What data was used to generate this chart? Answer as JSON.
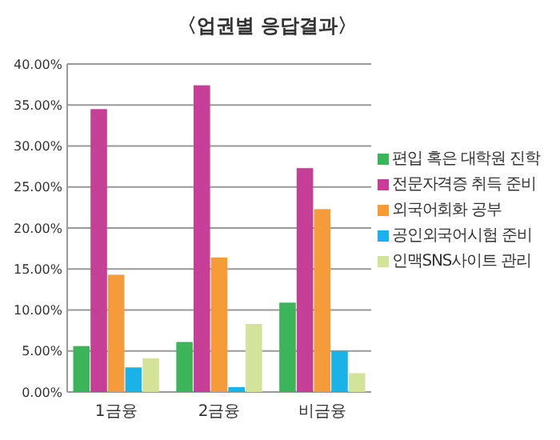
{
  "chart_data": {
    "type": "bar",
    "title": "〈업권별 응답결과〉",
    "categories": [
      "1금융",
      "2금융",
      "비금융"
    ],
    "series": [
      {
        "name": "편입 혹은 대학원 진학",
        "color": "#3cb55a",
        "values": [
          5.6,
          6.1,
          10.9
        ]
      },
      {
        "name": "전문자격증 취득 준비",
        "color": "#c63f97",
        "values": [
          34.5,
          37.4,
          27.3
        ]
      },
      {
        "name": "외국어회화 공부",
        "color": "#f59b3a",
        "values": [
          14.3,
          16.4,
          22.3
        ]
      },
      {
        "name": "공인외국어시험 준비",
        "color": "#19b3e8",
        "values": [
          3.0,
          0.6,
          5.0
        ]
      },
      {
        "name": "인맥SNS사이트 관리",
        "color": "#d4e39a",
        "values": [
          4.1,
          8.3,
          2.3
        ]
      }
    ],
    "ylim": [
      0,
      40
    ],
    "yticks": [
      {
        "value": 0,
        "label": "0.00%"
      },
      {
        "value": 5,
        "label": "5.00%"
      },
      {
        "value": 10,
        "label": "10.00%"
      },
      {
        "value": 15,
        "label": "15.00%"
      },
      {
        "value": 20,
        "label": "20.00%"
      },
      {
        "value": 25,
        "label": "25.00%"
      },
      {
        "value": 30,
        "label": "30.00%"
      },
      {
        "value": 35,
        "label": "35.00%"
      },
      {
        "value": 40,
        "label": "40.00%"
      }
    ],
    "grid": "y",
    "legend": "right"
  }
}
